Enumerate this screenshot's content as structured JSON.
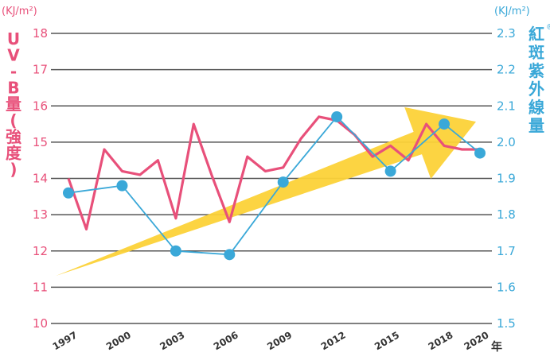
{
  "chart_data": {
    "type": "line",
    "left_unit": "(KJ/m²)",
    "right_unit": "(KJ/m²)",
    "left_axis_label": [
      "U",
      "V",
      "-",
      "B",
      "量",
      "(",
      "強",
      "度",
      ")"
    ],
    "right_axis_label": [
      "紅",
      "斑",
      "紫",
      "外",
      "線",
      "量"
    ],
    "right_axis_mark": "®",
    "x_unit": "年",
    "x_ticks": [
      "1997",
      "2000",
      "2003",
      "2006",
      "2009",
      "2012",
      "2015",
      "2018",
      "2020"
    ],
    "y_left_ticks": [
      "18",
      "17",
      "16",
      "15",
      "14",
      "13",
      "12",
      "11",
      "10"
    ],
    "y_right_ticks": [
      "2.3",
      "2.2",
      "2.1",
      "2.0",
      "1.9",
      "1.8",
      "1.7",
      "1.6",
      "1.5"
    ],
    "ylim_left": [
      10,
      18
    ],
    "ylim_right": [
      1.5,
      2.3
    ],
    "grid": true,
    "colors": {
      "left": "#e8507a",
      "right": "#3aa8d8",
      "arrow": "#fcd238",
      "grid": "#555555"
    },
    "series": [
      {
        "axis": "left",
        "x": [
          1997,
          1998,
          1999,
          2000,
          2001,
          2002,
          2003,
          2004,
          2005,
          2006,
          2007,
          2008,
          2009,
          2010,
          2011,
          2012,
          2013,
          2014,
          2015,
          2016,
          2017,
          2018,
          2019,
          2020
        ],
        "values": [
          14.0,
          12.6,
          14.8,
          14.2,
          14.1,
          14.5,
          12.9,
          15.5,
          14.1,
          12.8,
          14.6,
          14.2,
          14.3,
          15.1,
          15.7,
          15.6,
          15.2,
          14.6,
          14.9,
          14.5,
          15.5,
          14.9,
          14.8,
          14.8
        ]
      },
      {
        "axis": "right",
        "x": [
          1997,
          2000,
          2003,
          2006,
          2009,
          2012,
          2015,
          2018,
          2020
        ],
        "values": [
          1.86,
          1.88,
          1.7,
          1.69,
          1.89,
          2.07,
          1.92,
          2.05,
          1.97
        ]
      }
    ],
    "trend_arrow": {
      "from": [
        1997,
        11.4
      ],
      "to": [
        2020,
        15.5
      ]
    }
  }
}
